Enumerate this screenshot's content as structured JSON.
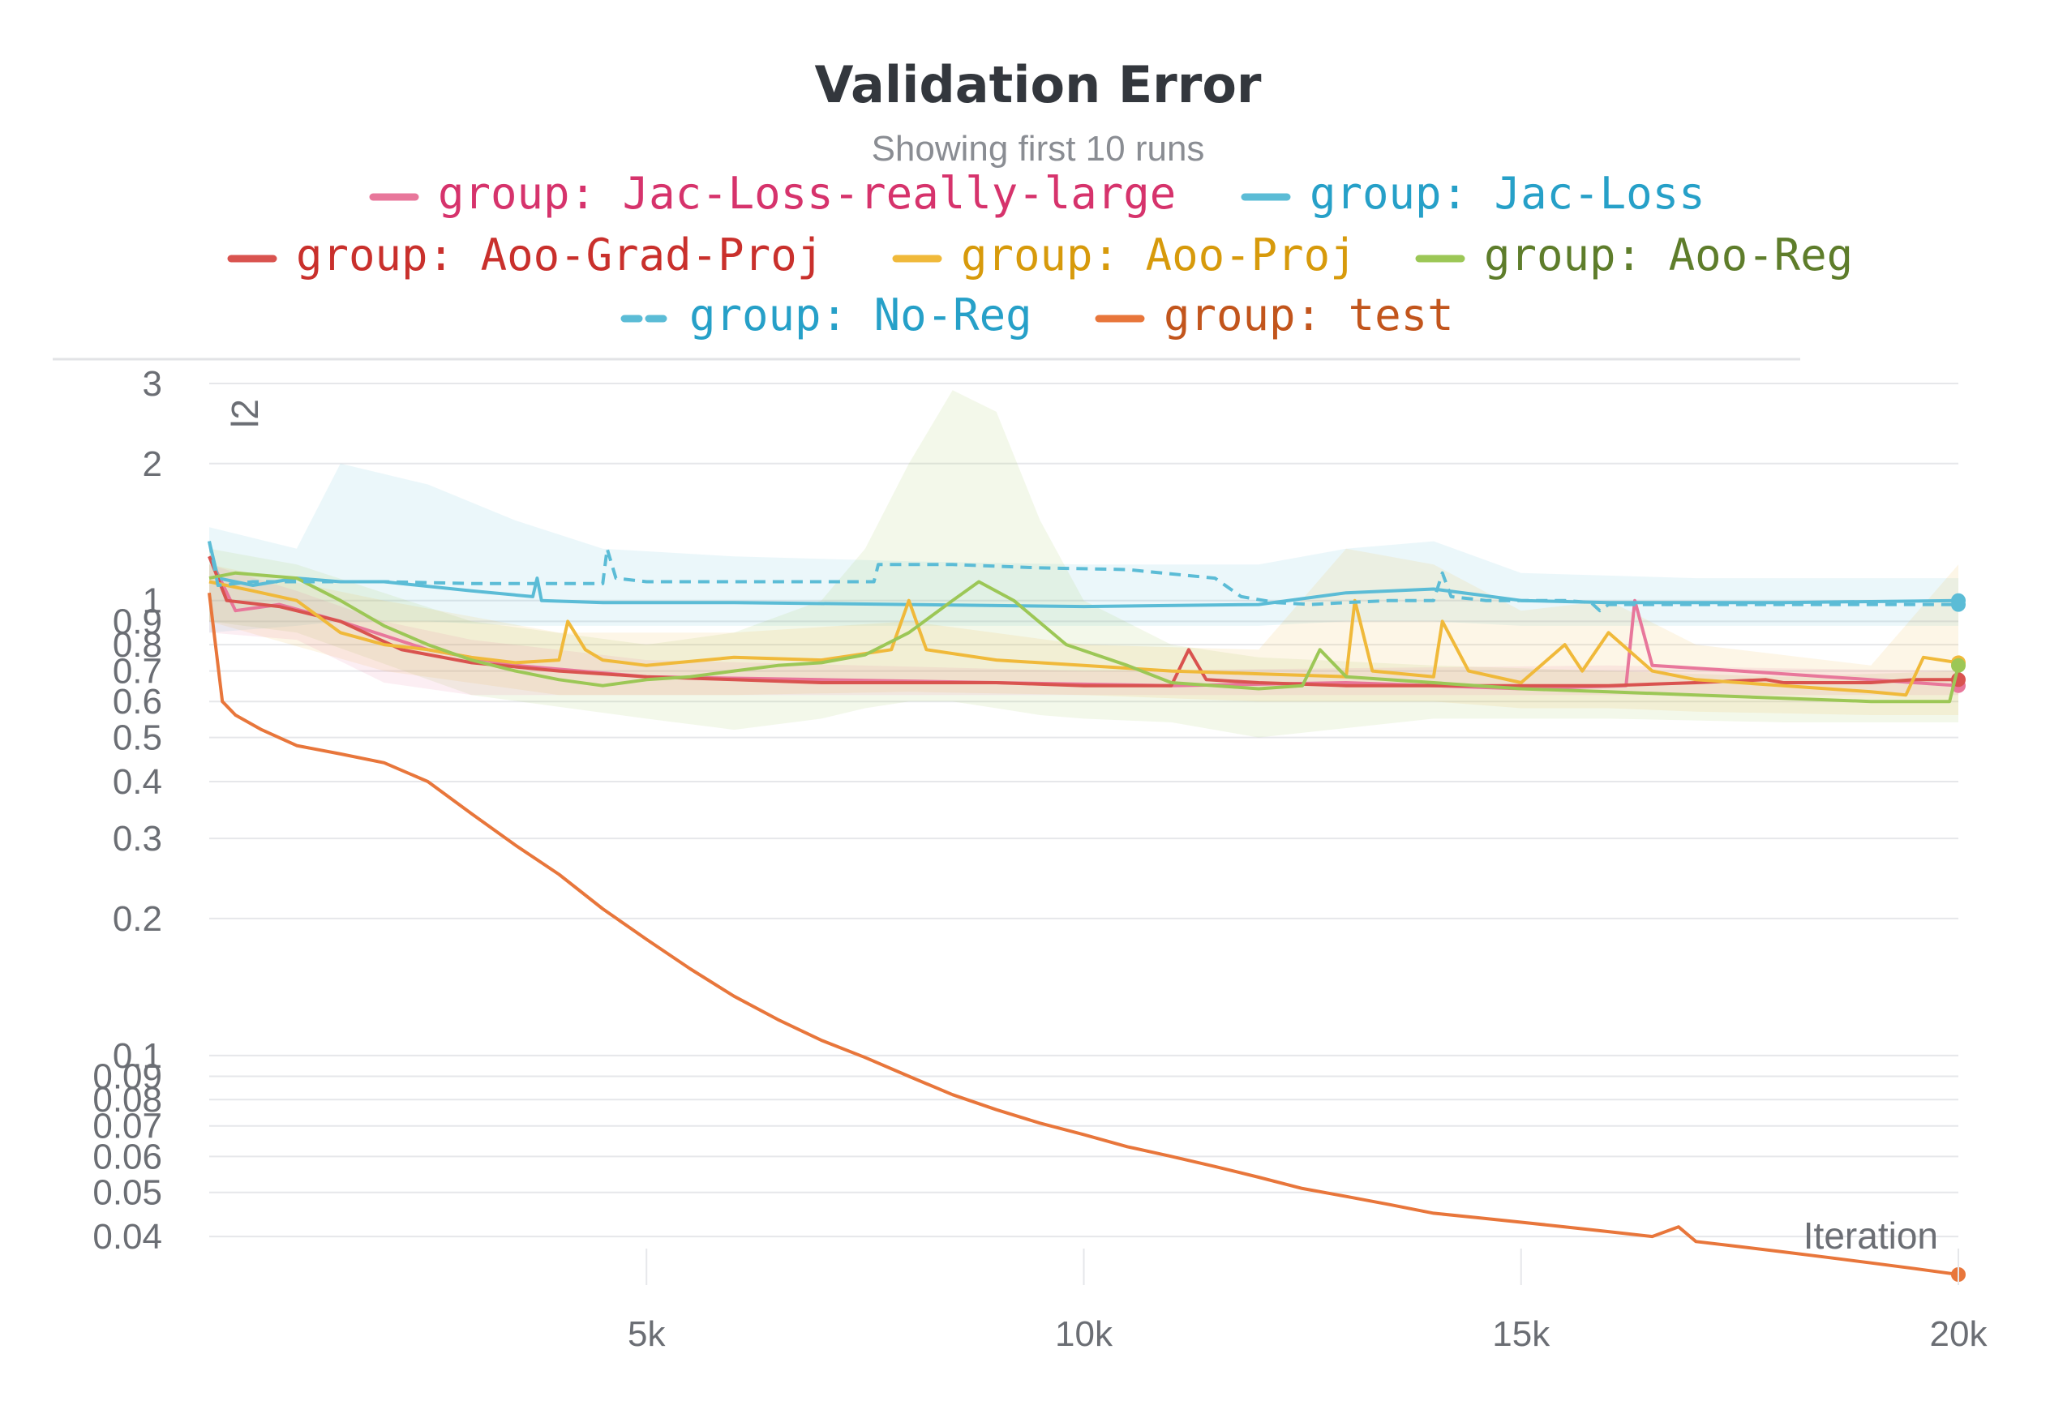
{
  "chart_data": {
    "type": "line",
    "title": "Validation Error",
    "subtitle": "Showing first 10 runs",
    "ylabel": "l2",
    "xlabel": "Iteration",
    "y_scale": "log",
    "ylim": [
      0.033,
      3.1
    ],
    "xlim": [
      0,
      20000
    ],
    "y_ticks": [
      {
        "value": 3,
        "label": "3"
      },
      {
        "value": 2,
        "label": "2"
      },
      {
        "value": 1,
        "label": "1"
      },
      {
        "value": 0.9,
        "label": "0.9"
      },
      {
        "value": 0.8,
        "label": "0.8"
      },
      {
        "value": 0.7,
        "label": "0.7"
      },
      {
        "value": 0.6,
        "label": "0.6"
      },
      {
        "value": 0.5,
        "label": "0.5"
      },
      {
        "value": 0.4,
        "label": "0.4"
      },
      {
        "value": 0.3,
        "label": "0.3"
      },
      {
        "value": 0.2,
        "label": "0.2"
      },
      {
        "value": 0.1,
        "label": "0.1"
      },
      {
        "value": 0.09,
        "label": "0.09"
      },
      {
        "value": 0.08,
        "label": "0.08"
      },
      {
        "value": 0.07,
        "label": "0.07"
      },
      {
        "value": 0.06,
        "label": "0.06"
      },
      {
        "value": 0.05,
        "label": "0.05"
      },
      {
        "value": 0.04,
        "label": "0.04"
      }
    ],
    "x_ticks": [
      {
        "value": 5000,
        "label": "5k"
      },
      {
        "value": 10000,
        "label": "10k"
      },
      {
        "value": 15000,
        "label": "15k"
      },
      {
        "value": 20000,
        "label": "20k"
      }
    ],
    "grid": true,
    "legend_position": "top",
    "series": [
      {
        "name": "group: Jac-Loss-really-large",
        "color": "#e8779b",
        "text_color": "#d6336c",
        "dash": false,
        "end_marker": true,
        "x": [
          0,
          300,
          800,
          1500,
          2500,
          3500,
          5000,
          7000,
          9000,
          11000,
          13000,
          15000,
          16200,
          16300,
          16500,
          17500,
          18500,
          19500,
          20000
        ],
        "y": [
          1.25,
          0.95,
          0.98,
          0.9,
          0.78,
          0.72,
          0.68,
          0.67,
          0.66,
          0.65,
          0.66,
          0.64,
          0.65,
          1.0,
          0.72,
          0.7,
          0.68,
          0.66,
          0.65
        ]
      },
      {
        "name": "group: Jac-Loss",
        "color": "#5bbcd6",
        "text_color": "#26a0c8",
        "dash": false,
        "end_marker": true,
        "x": [
          0,
          100,
          500,
          1000,
          1500,
          2000,
          3000,
          3700,
          3750,
          3800,
          4500,
          6000,
          8000,
          10000,
          12000,
          13000,
          14000,
          14500,
          15000,
          16000,
          18000,
          20000
        ],
        "y": [
          1.35,
          1.12,
          1.08,
          1.12,
          1.1,
          1.1,
          1.05,
          1.02,
          1.12,
          1.0,
          0.99,
          0.99,
          0.98,
          0.97,
          0.98,
          1.04,
          1.06,
          1.03,
          1.0,
          0.99,
          0.99,
          1.0
        ]
      },
      {
        "name": "group: Aoo-Grad-Proj",
        "color": "#d9534f",
        "text_color": "#c9302c",
        "dash": false,
        "end_marker": true,
        "x": [
          0,
          200,
          800,
          1500,
          2200,
          3000,
          4000,
          5000,
          6000,
          7000,
          8000,
          9000,
          10000,
          11000,
          11200,
          11400,
          12000,
          13000,
          14000,
          15000,
          16000,
          17000,
          17800,
          18000,
          19000,
          19500,
          20000
        ],
        "y": [
          1.25,
          1.0,
          0.97,
          0.9,
          0.78,
          0.73,
          0.7,
          0.68,
          0.67,
          0.66,
          0.66,
          0.66,
          0.65,
          0.65,
          0.78,
          0.67,
          0.66,
          0.65,
          0.65,
          0.65,
          0.65,
          0.66,
          0.67,
          0.66,
          0.66,
          0.67,
          0.67
        ]
      },
      {
        "name": "group: Aoo-Proj",
        "color": "#f0b93a",
        "text_color": "#d79a0b",
        "dash": false,
        "end_marker": true,
        "x": [
          0,
          500,
          1000,
          1500,
          2000,
          2500,
          3000,
          3500,
          4000,
          4100,
          4300,
          4500,
          5000,
          6000,
          7000,
          7800,
          8000,
          8200,
          9000,
          10000,
          11000,
          12000,
          13000,
          13100,
          13300,
          14000,
          14100,
          14400,
          15000,
          15500,
          15700,
          16000,
          16500,
          17000,
          18000,
          19000,
          19400,
          19600,
          20000
        ],
        "y": [
          1.1,
          1.05,
          1.0,
          0.85,
          0.8,
          0.78,
          0.75,
          0.73,
          0.74,
          0.9,
          0.78,
          0.74,
          0.72,
          0.75,
          0.74,
          0.78,
          1.0,
          0.78,
          0.74,
          0.72,
          0.7,
          0.69,
          0.68,
          1.0,
          0.7,
          0.68,
          0.9,
          0.7,
          0.66,
          0.8,
          0.7,
          0.85,
          0.7,
          0.67,
          0.65,
          0.63,
          0.62,
          0.75,
          0.73
        ]
      },
      {
        "name": "group: Aoo-Reg",
        "color": "#9cc756",
        "text_color": "#5e7d2b",
        "dash": false,
        "end_marker": true,
        "x": [
          0,
          300,
          1000,
          1500,
          2000,
          2500,
          3000,
          3500,
          4000,
          4500,
          5000,
          5500,
          6000,
          6500,
          7000,
          7500,
          8000,
          8500,
          8800,
          9200,
          9800,
          10500,
          11000,
          12000,
          12500,
          12700,
          13000,
          14000,
          15000,
          16000,
          17000,
          18000,
          19000,
          19900,
          20000
        ],
        "y": [
          1.12,
          1.15,
          1.12,
          1.0,
          0.88,
          0.8,
          0.74,
          0.7,
          0.67,
          0.65,
          0.67,
          0.68,
          0.7,
          0.72,
          0.73,
          0.76,
          0.85,
          1.0,
          1.1,
          1.0,
          0.8,
          0.72,
          0.66,
          0.64,
          0.65,
          0.78,
          0.68,
          0.66,
          0.64,
          0.63,
          0.62,
          0.61,
          0.6,
          0.6,
          0.72
        ]
      },
      {
        "name": "group: No-Reg",
        "color": "#5bbcd6",
        "text_color": "#26a0c8",
        "dash": true,
        "end_marker": true,
        "x": [
          0,
          100,
          500,
          1000,
          2000,
          3000,
          4000,
          4500,
          4550,
          4650,
          5000,
          6000,
          7000,
          7600,
          7650,
          8500,
          9500,
          10500,
          11500,
          11800,
          12200,
          12600,
          13000,
          13500,
          14000,
          14100,
          14200,
          14600,
          15000,
          15500,
          15800,
          15900,
          16000,
          16300,
          17000,
          18000,
          19000,
          20000
        ],
        "y": [
          1.35,
          1.08,
          1.1,
          1.1,
          1.1,
          1.09,
          1.09,
          1.09,
          1.3,
          1.12,
          1.1,
          1.1,
          1.1,
          1.1,
          1.2,
          1.2,
          1.18,
          1.17,
          1.12,
          1.02,
          0.99,
          0.98,
          0.99,
          1.0,
          1.0,
          1.15,
          1.02,
          1.0,
          1.0,
          1.0,
          0.99,
          0.95,
          0.98,
          0.98,
          0.98,
          0.98,
          0.98,
          0.98
        ]
      },
      {
        "name": "group: test",
        "color": "#e8763b",
        "text_color": "#c2551c",
        "dash": false,
        "end_marker": true,
        "x": [
          0,
          150,
          300,
          600,
          1000,
          1500,
          2000,
          2500,
          3000,
          3500,
          4000,
          4500,
          5000,
          5500,
          6000,
          6500,
          7000,
          7500,
          8000,
          8500,
          9000,
          9500,
          10000,
          10500,
          11000,
          11500,
          12000,
          12500,
          13000,
          13500,
          14000,
          14500,
          15000,
          15500,
          16000,
          16500,
          16800,
          17000,
          17500,
          18000,
          18500,
          19000,
          19500,
          20000
        ],
        "y": [
          1.04,
          0.6,
          0.56,
          0.52,
          0.48,
          0.46,
          0.44,
          0.4,
          0.34,
          0.29,
          0.25,
          0.21,
          0.18,
          0.155,
          0.135,
          0.12,
          0.108,
          0.099,
          0.09,
          0.082,
          0.076,
          0.071,
          0.067,
          0.063,
          0.06,
          0.057,
          0.054,
          0.051,
          0.049,
          0.047,
          0.045,
          0.044,
          0.043,
          0.042,
          0.041,
          0.04,
          0.042,
          0.039,
          0.038,
          0.037,
          0.036,
          0.035,
          0.034,
          0.033
        ]
      }
    ],
    "bands": [
      {
        "series": "group: Jac-Loss",
        "color": "#5bbcd6",
        "x": [
          0,
          1000,
          1500,
          2500,
          3500,
          4500,
          6000,
          8000,
          10000,
          12000,
          13000,
          14000,
          15000,
          17000,
          20000
        ],
        "upper": [
          1.45,
          1.3,
          2.0,
          1.8,
          1.5,
          1.3,
          1.25,
          1.22,
          1.2,
          1.2,
          1.3,
          1.35,
          1.15,
          1.12,
          1.12
        ],
        "lower": [
          0.85,
          0.88,
          0.9,
          0.9,
          0.88,
          0.88,
          0.88,
          0.88,
          0.88,
          0.88,
          0.9,
          0.9,
          0.88,
          0.88,
          0.88
        ]
      },
      {
        "series": "group: Aoo-Reg",
        "color": "#9cc756",
        "x": [
          0,
          1000,
          3000,
          5000,
          6000,
          7000,
          7500,
          8000,
          8500,
          9000,
          9500,
          10000,
          11000,
          12000,
          14000,
          16000,
          18000,
          20000
        ],
        "upper": [
          1.3,
          1.2,
          0.9,
          0.8,
          0.85,
          1.0,
          1.3,
          2.0,
          2.9,
          2.6,
          1.5,
          1.0,
          0.8,
          0.75,
          0.72,
          0.7,
          0.68,
          0.7
        ],
        "lower": [
          0.9,
          0.85,
          0.62,
          0.55,
          0.52,
          0.55,
          0.58,
          0.6,
          0.6,
          0.58,
          0.56,
          0.55,
          0.54,
          0.5,
          0.55,
          0.55,
          0.54,
          0.54
        ]
      },
      {
        "series": "group: Aoo-Proj",
        "color": "#f0b93a",
        "x": [
          0,
          2000,
          4000,
          6000,
          8000,
          10000,
          12000,
          13000,
          14000,
          15000,
          16000,
          17000,
          19000,
          20000
        ],
        "upper": [
          1.2,
          1.0,
          0.85,
          0.85,
          0.9,
          0.8,
          0.78,
          1.3,
          1.2,
          0.95,
          1.0,
          0.8,
          0.72,
          1.2
        ],
        "lower": [
          0.9,
          0.7,
          0.62,
          0.62,
          0.63,
          0.62,
          0.6,
          0.6,
          0.6,
          0.58,
          0.58,
          0.57,
          0.56,
          0.56
        ]
      },
      {
        "series": "group: Jac-Loss-really-large",
        "color": "#e8779b",
        "x": [
          0,
          1000,
          2000,
          3000,
          5000,
          10000,
          16000,
          20000
        ],
        "upper": [
          1.2,
          1.05,
          0.9,
          0.82,
          0.74,
          0.7,
          0.72,
          0.7
        ],
        "lower": [
          0.85,
          0.82,
          0.66,
          0.62,
          0.62,
          0.62,
          0.62,
          0.62
        ]
      }
    ]
  }
}
